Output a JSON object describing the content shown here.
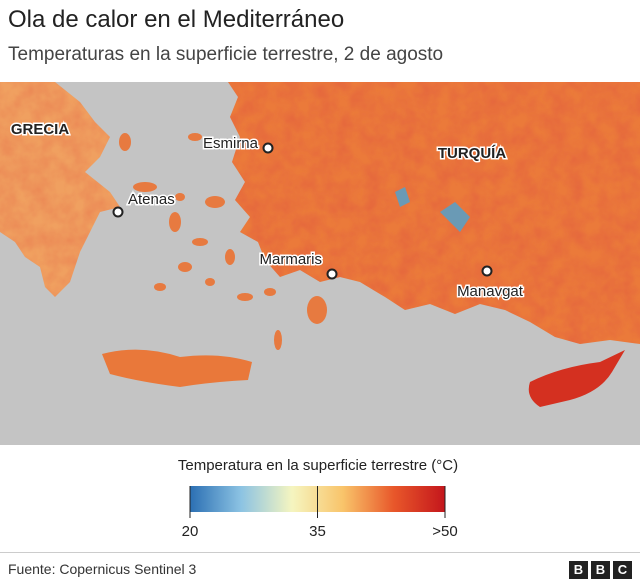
{
  "header": {
    "title": "Ola de calor en el Mediterráneo",
    "subtitle": "Temperaturas en la superficie terrestre, 2 de agosto"
  },
  "map": {
    "regions": [
      "GRECIA",
      "TURQUÍA"
    ],
    "cities": [
      "Esmirna",
      "Atenas",
      "Marmaris",
      "Manavgat"
    ]
  },
  "legend": {
    "title": "Temperatura en la superficie terrestre (°C)",
    "colors": [
      "#2b6fb3",
      "#8cc3e3",
      "#f5f5c0",
      "#f9c46a",
      "#e8572a",
      "#c4161c"
    ],
    "ticks": [
      20,
      35,
      {
        "value": 50,
        "label": ">50"
      }
    ]
  },
  "footer": {
    "source": "Fuente: Copernicus Sentinel 3",
    "logo": [
      "B",
      "B",
      "C"
    ]
  }
}
